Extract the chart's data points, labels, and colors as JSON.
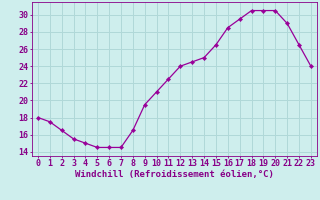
{
  "x": [
    0,
    1,
    2,
    3,
    4,
    5,
    6,
    7,
    8,
    9,
    10,
    11,
    12,
    13,
    14,
    15,
    16,
    17,
    18,
    19,
    20,
    21,
    22,
    23
  ],
  "y": [
    18.0,
    17.5,
    16.5,
    15.5,
    15.0,
    14.5,
    14.5,
    14.5,
    16.5,
    19.5,
    21.0,
    22.5,
    24.0,
    24.5,
    25.0,
    26.5,
    28.5,
    29.5,
    30.5,
    30.5,
    30.5,
    29.0,
    26.5,
    24.0
  ],
  "line_color": "#990099",
  "marker": "D",
  "marker_size": 2.2,
  "background_color": "#ceeeed",
  "grid_color": "#b0d8d8",
  "xlabel": "Windchill (Refroidissement éolien,°C)",
  "ylabel": "",
  "title": "",
  "xlim": [
    -0.5,
    23.5
  ],
  "ylim": [
    13.5,
    31.5
  ],
  "yticks": [
    14,
    16,
    18,
    20,
    22,
    24,
    26,
    28,
    30
  ],
  "xticks": [
    0,
    1,
    2,
    3,
    4,
    5,
    6,
    7,
    8,
    9,
    10,
    11,
    12,
    13,
    14,
    15,
    16,
    17,
    18,
    19,
    20,
    21,
    22,
    23
  ],
  "tick_color": "#880088",
  "xlabel_fontsize": 6.5,
  "tick_fontsize": 6.0,
  "font_family": "monospace"
}
